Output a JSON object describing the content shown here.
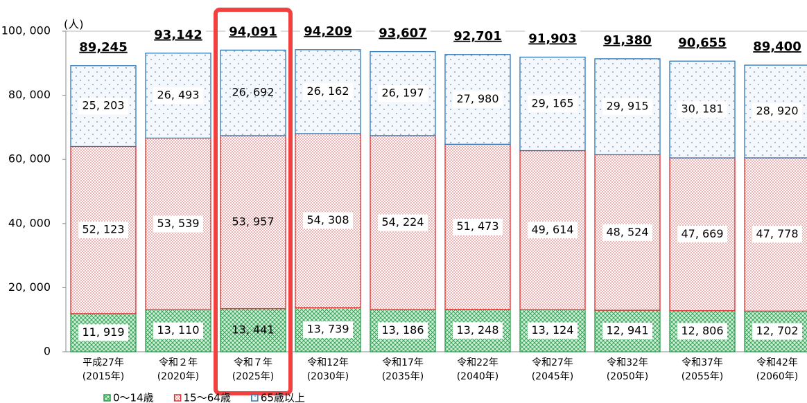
{
  "chart_data": {
    "type": "stacked_bar",
    "unit_label": "(人)",
    "categories": [
      [
        "平成27年",
        "(2015年)"
      ],
      [
        "令和２年",
        "(2020年)"
      ],
      [
        "令和７年",
        "(2025年)"
      ],
      [
        "令和12年",
        "(2030年)"
      ],
      [
        "令和17年",
        "(2035年)"
      ],
      [
        "令和22年",
        "(2040年)"
      ],
      [
        "令和27年",
        "(2045年)"
      ],
      [
        "令和32年",
        "(2050年)"
      ],
      [
        "令和37年",
        "(2055年)"
      ],
      [
        "令和42年",
        "(2060年)"
      ]
    ],
    "series": [
      {
        "name": "0～14歳",
        "color": "#2a9d4a",
        "values": [
          11919,
          13110,
          13441,
          13739,
          13186,
          13248,
          13124,
          12941,
          12806,
          12702
        ],
        "value_labels": [
          "11, 919",
          "13, 110",
          "13, 441",
          "13, 739",
          "13, 186",
          "13, 248",
          "13, 124",
          "12, 941",
          "12, 806",
          "12, 702"
        ]
      },
      {
        "name": "15～64歳",
        "color": "#e03030",
        "values": [
          52123,
          53539,
          53957,
          54308,
          54224,
          51473,
          49614,
          48524,
          47669,
          47778
        ],
        "value_labels": [
          "52, 123",
          "53, 539",
          "53, 957",
          "54, 308",
          "54, 224",
          "51, 473",
          "49, 614",
          "48, 524",
          "47, 669",
          "47, 778"
        ]
      },
      {
        "name": "65歳以上",
        "color": "#2e75b6",
        "values": [
          25203,
          26493,
          26692,
          26162,
          26197,
          27980,
          29165,
          29915,
          30181,
          28920
        ],
        "value_labels": [
          "25, 203",
          "26, 493",
          "26, 692",
          "26, 162",
          "26, 197",
          "27, 980",
          "29, 165",
          "29, 915",
          "30, 181",
          "28, 920"
        ]
      }
    ],
    "totals": {
      "values": [
        89245,
        93142,
        94091,
        94209,
        93607,
        92701,
        91903,
        91380,
        90655,
        89400
      ],
      "value_labels": [
        "89,245",
        "93,142",
        "94,091",
        "94,209",
        "93,607",
        "92,701",
        "91,903",
        "91,380",
        "90,655",
        "89,400"
      ]
    },
    "ylim": [
      0,
      100000
    ],
    "yticks": [
      0,
      {
        "value": 20000,
        "label": "20, 000"
      },
      {
        "value": 40000,
        "label": "40, 000"
      },
      {
        "value": 60000,
        "label": "60, 000"
      },
      {
        "value": 80000,
        "label": "80, 000"
      },
      {
        "value": 100000,
        "label": "100, 000"
      }
    ],
    "highlight_index": 2,
    "highlight_color": "#f04040"
  }
}
